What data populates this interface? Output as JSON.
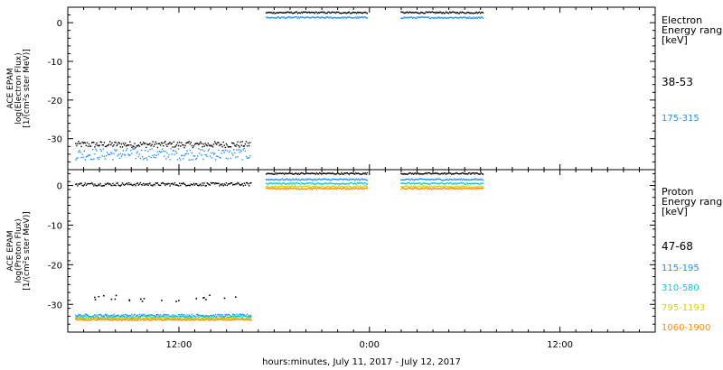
{
  "figure": {
    "xaxis_title": "hours:minutes, July 11, 2017 - July 12, 2017"
  },
  "chart_data": [
    {
      "type": "scatter",
      "ylabel_lines": [
        "ACE EPAM",
        "log(Electron Flux)",
        "[1/(cm²s ster MeV)]"
      ],
      "yticks": [
        0,
        -10,
        -20,
        -30
      ],
      "ylim": [
        -38,
        4
      ],
      "xlim_hours": [
        5,
        42
      ],
      "xticks": [
        {
          "hour": 12,
          "label": "12:00"
        },
        {
          "hour": 24,
          "label": "0:00"
        },
        {
          "hour": 36,
          "label": "12:00"
        }
      ],
      "legend": {
        "title_lines": [
          "Electron",
          "Energy ranges",
          "[keV]"
        ],
        "entries": [
          {
            "label": "38-53",
            "color": "#000000"
          },
          {
            "label": "175-315",
            "color": "#1e90ff"
          }
        ]
      },
      "series": [
        {
          "name": "38-53",
          "color": "#000000",
          "segments": [
            {
              "x": [
                5.5,
                16.5
              ],
              "y": -31.5,
              "jitter": 0.8
            },
            {
              "x": [
                17.5,
                23.9
              ],
              "y": 2.6,
              "jitter": 0.2
            },
            {
              "x": [
                26.0,
                31.2
              ],
              "y": 2.6,
              "jitter": 0.2
            }
          ]
        },
        {
          "name": "175-315",
          "color": "#1e90ff",
          "segments": [
            {
              "x": [
                5.5,
                16.5
              ],
              "y": -34.0,
              "jitter": 1.5
            },
            {
              "x": [
                17.5,
                23.9
              ],
              "y": 1.3,
              "jitter": 0.2
            },
            {
              "x": [
                26.0,
                31.2
              ],
              "y": 1.3,
              "jitter": 0.2
            }
          ]
        }
      ]
    },
    {
      "type": "scatter",
      "ylabel_lines": [
        "ACE EPAM",
        "log(Proton Flux)",
        "[1/(cm²s ster MeV)]"
      ],
      "yticks": [
        0,
        -10,
        -20,
        -30
      ],
      "ylim": [
        -37,
        4
      ],
      "xlim_hours": [
        5,
        42
      ],
      "xticks": [
        {
          "hour": 12,
          "label": "12:00"
        },
        {
          "hour": 24,
          "label": "0:00"
        },
        {
          "hour": 36,
          "label": "12:00"
        }
      ],
      "legend": {
        "title_lines": [
          "Proton",
          "Energy ranges",
          "[keV]"
        ],
        "entries": [
          {
            "label": "47-68",
            "color": "#000000"
          },
          {
            "label": "115-195",
            "color": "#1e90ff"
          },
          {
            "label": "310-580",
            "color": "#00d0d0"
          },
          {
            "label": "795-1193",
            "color": "#d4d400"
          },
          {
            "label": "1060-1900",
            "color": "#ff8c00"
          }
        ]
      },
      "series": [
        {
          "name": "47-68",
          "color": "#000000",
          "segments": [
            {
              "x": [
                5.5,
                16.6
              ],
              "y": 0.3,
              "jitter": 0.4
            },
            {
              "x": [
                17.5,
                23.9
              ],
              "y": 3.0,
              "jitter": 0.2
            },
            {
              "x": [
                26.0,
                31.2
              ],
              "y": 3.0,
              "jitter": 0.2
            }
          ]
        },
        {
          "name": "115-195",
          "color": "#1e90ff",
          "segments": [
            {
              "x": [
                5.5,
                16.6
              ],
              "y": -32.8,
              "jitter": 0.3
            },
            {
              "x": [
                17.5,
                23.9
              ],
              "y": 1.5,
              "jitter": 0.2
            },
            {
              "x": [
                26.0,
                31.2
              ],
              "y": 1.5,
              "jitter": 0.2
            }
          ]
        },
        {
          "name": "310-580",
          "color": "#00d0d0",
          "segments": [
            {
              "x": [
                5.5,
                16.6
              ],
              "y": -33.2,
              "jitter": 0.3
            },
            {
              "x": [
                17.5,
                23.9
              ],
              "y": 0.5,
              "jitter": 0.2
            },
            {
              "x": [
                26.0,
                31.2
              ],
              "y": 0.5,
              "jitter": 0.2
            }
          ]
        },
        {
          "name": "795-1193",
          "color": "#d4d400",
          "segments": [
            {
              "x": [
                5.5,
                16.6
              ],
              "y": -33.6,
              "jitter": 0.2
            },
            {
              "x": [
                17.5,
                23.9
              ],
              "y": -0.3,
              "jitter": 0.2
            },
            {
              "x": [
                26.0,
                31.2
              ],
              "y": -0.3,
              "jitter": 0.2
            }
          ]
        },
        {
          "name": "1060-1900",
          "color": "#ff8c00",
          "segments": [
            {
              "x": [
                5.5,
                16.6
              ],
              "y": -33.9,
              "jitter": 0.2
            },
            {
              "x": [
                17.5,
                23.9
              ],
              "y": -0.8,
              "jitter": 0.2
            },
            {
              "x": [
                26.0,
                31.2
              ],
              "y": -0.8,
              "jitter": 0.2
            }
          ]
        }
      ],
      "extra_points": [
        {
          "x": [
            6.2,
            16.0
          ],
          "y": -28.5,
          "color": "#000000",
          "count": 22
        }
      ]
    }
  ]
}
